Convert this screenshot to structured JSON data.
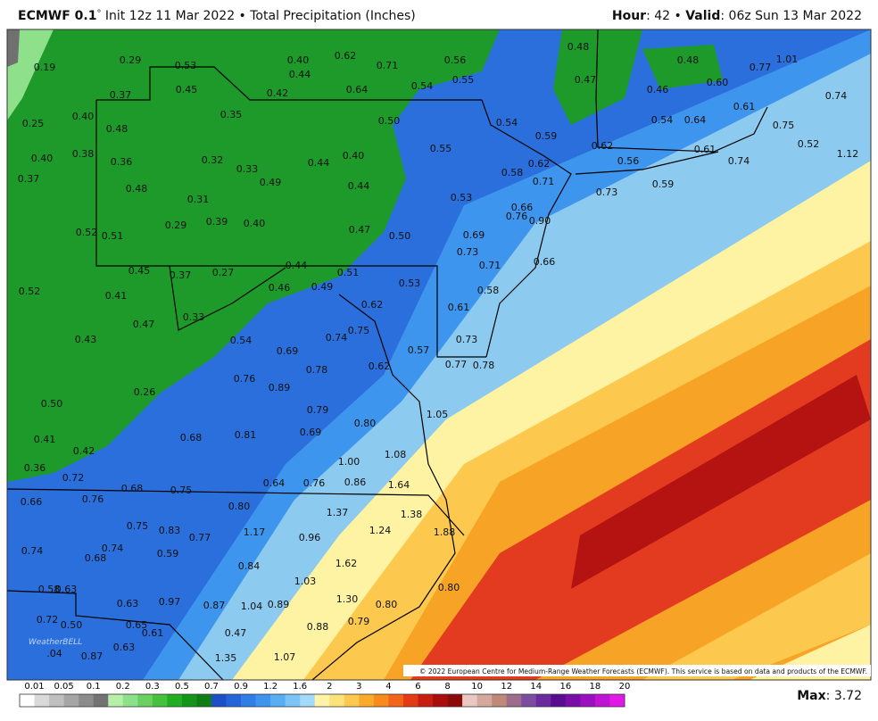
{
  "header": {
    "model": "ECMWF 0.1",
    "degree": "°",
    "title_rest": " Init 12z 11 Mar 2022 • Total Precipitation (Inches)",
    "hour_label": "Hour",
    "hour_value": ": 42 • ",
    "valid_label": "Valid",
    "valid_value": ": 06z Sun 13 Mar 2022"
  },
  "map": {
    "labels": [
      "0.19",
      "0.29",
      "0.53",
      "0.40",
      "0.62",
      "0.71",
      "0.56",
      "0.48",
      "0.48",
      "0.77",
      "1.01",
      "0.44",
      "0.45",
      "0.42",
      "0.64",
      "0.54",
      "0.55",
      "0.47",
      "0.46",
      "0.60",
      "0.37",
      "0.74",
      "0.25",
      "0.40",
      "0.35",
      "0.50",
      "0.54",
      "0.54",
      "0.64",
      "0.61",
      "0.75",
      "0.48",
      "0.59",
      "0.62",
      "0.61",
      "0.52",
      "0.40",
      "0.38",
      "0.36",
      "0.32",
      "0.33",
      "0.44",
      "0.40",
      "0.55",
      "0.62",
      "0.56",
      "0.74",
      "1.12",
      "0.37",
      "0.48",
      "0.49",
      "0.44",
      "0.58",
      "0.71",
      "0.73",
      "0.59",
      "0.31",
      "0.53",
      "0.66",
      "0.29",
      "0.39",
      "0.40",
      "0.47",
      "0.50",
      "0.76",
      "0.90",
      "0.52",
      "0.51",
      "0.69",
      "0.73",
      "0.71",
      "0.66",
      "0.44",
      "0.45",
      "0.37",
      "0.27",
      "0.51",
      "0.46",
      "0.49",
      "0.53",
      "0.58",
      "0.52",
      "0.41",
      "0.62",
      "0.61",
      "0.33",
      "0.47",
      "0.75",
      "0.74",
      "0.73",
      "0.54",
      "0.43",
      "0.69",
      "0.57",
      "0.78",
      "0.62",
      "0.77",
      "0.78",
      "0.76",
      "0.89",
      "0.26",
      "0.50",
      "0.79",
      "1.05",
      "0.80",
      "0.69",
      "0.81",
      "0.68",
      "0.41",
      "0.42",
      "1.08",
      "1.00",
      "0.36",
      "0.72",
      "0.64",
      "0.76",
      "0.86",
      "1.64",
      "0.68",
      "0.75",
      "0.76",
      "0.66",
      "0.80",
      "1.37",
      "1.38",
      "0.75",
      "0.83",
      "0.77",
      "1.17",
      "1.24",
      "1.88",
      "0.96",
      "0.74",
      "0.74",
      "0.68",
      "0.59",
      "0.84",
      "1.62",
      "1.03",
      "0.58",
      "0.63",
      "0.80",
      "1.30",
      "0.97",
      "0.87",
      "1.04",
      "0.89",
      "0.63",
      "0.80",
      "0.72",
      "0.50",
      "0.65",
      "0.61",
      "0.79",
      "0.88",
      "0.47",
      "0.63",
      ".04",
      "0.87",
      "1.35",
      "1.07"
    ]
  },
  "logo": "WeatherBELL",
  "copyright": "© 2022 European Centre for Medium-Range Weather Forecasts (ECMWF). This service is based on data and products of the ECMWF.",
  "legend": {
    "ticks": [
      "0.01",
      "0.05",
      "0.1",
      "0.2",
      "0.3",
      "0.5",
      "0.7",
      "0.9",
      "1.2",
      "1.6",
      "2",
      "3",
      "4",
      "6",
      "8",
      "10",
      "12",
      "14",
      "16",
      "18",
      "20"
    ],
    "max_label": "Max",
    "max_value": ": 3.72"
  }
}
